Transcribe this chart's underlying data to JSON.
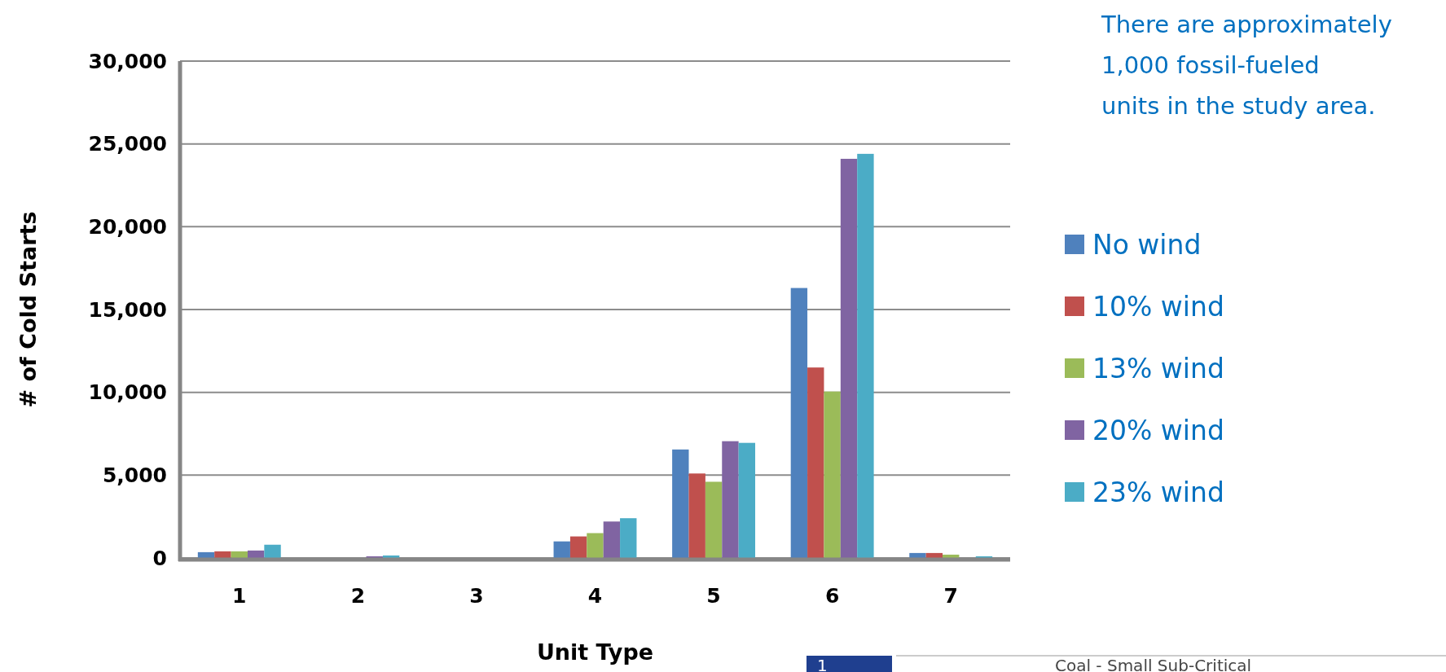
{
  "chart_data": {
    "type": "bar",
    "xlabel": "Unit Type",
    "ylabel": "# of Cold Starts",
    "categories": [
      "1",
      "2",
      "3",
      "4",
      "5",
      "6",
      "7"
    ],
    "series": [
      {
        "name": "No wind",
        "color": "#4f81bd",
        "values": [
          350,
          0,
          0,
          1000,
          6550,
          16300,
          300
        ]
      },
      {
        "name": "10% wind",
        "color": "#c0504d",
        "values": [
          400,
          0,
          0,
          1300,
          5100,
          11500,
          300
        ]
      },
      {
        "name": "13% wind",
        "color": "#9bbb59",
        "values": [
          400,
          0,
          0,
          1500,
          4600,
          10050,
          200
        ]
      },
      {
        "name": "20% wind",
        "color": "#8064a2",
        "values": [
          450,
          100,
          0,
          2200,
          7050,
          24100,
          0
        ]
      },
      {
        "name": "23% wind",
        "color": "#4bacc6",
        "values": [
          800,
          150,
          0,
          2400,
          6950,
          24400,
          100
        ]
      }
    ],
    "ylim": [
      0,
      30000
    ],
    "yticks": [
      {
        "value": 0,
        "label": "0"
      },
      {
        "value": 5000,
        "label": "5,000"
      },
      {
        "value": 10000,
        "label": "10,000"
      },
      {
        "value": 15000,
        "label": "15,000"
      },
      {
        "value": 20000,
        "label": "20,000"
      },
      {
        "value": 25000,
        "label": "25,000"
      },
      {
        "value": 30000,
        "label": "30,000"
      }
    ],
    "grid": "y",
    "legend": "right",
    "annotations": [
      "There are approximately 1,000 fossil-fueled units in the study area.",
      "1",
      "Coal - Small Sub-Critical"
    ]
  }
}
